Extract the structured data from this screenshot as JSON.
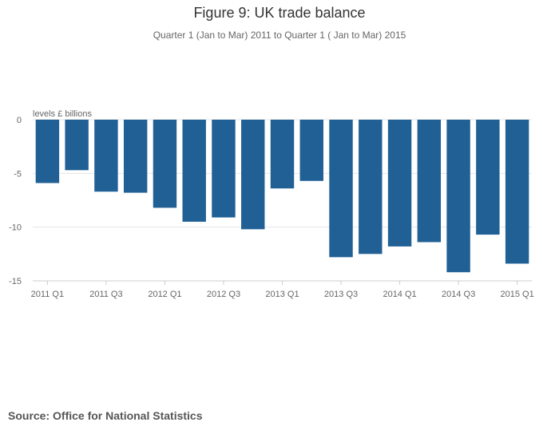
{
  "chart_data": {
    "type": "bar",
    "title": "Figure 9: UK trade balance",
    "subtitle": "Quarter 1 (Jan to Mar) 2011 to Quarter 1 ( Jan to Mar) 2015",
    "ylabel": "levels £ billions",
    "xlabel": "",
    "categories": [
      "2011 Q1",
      "2011 Q2",
      "2011 Q3",
      "2011 Q4",
      "2012 Q1",
      "2012 Q2",
      "2012 Q3",
      "2012 Q4",
      "2013 Q1",
      "2013 Q2",
      "2013 Q3",
      "2013 Q4",
      "2014 Q1",
      "2014 Q2",
      "2014 Q3",
      "2014 Q4",
      "2015 Q1"
    ],
    "x_tick_labels": [
      "2011 Q1",
      "2011 Q3",
      "2012 Q1",
      "2012 Q3",
      "2013 Q1",
      "2013 Q3",
      "2014 Q1",
      "2014 Q3",
      "2015 Q1"
    ],
    "values": [
      -5.9,
      -4.7,
      -6.7,
      -6.8,
      -8.2,
      -9.5,
      -9.1,
      -10.2,
      -6.4,
      -5.7,
      -12.8,
      -12.5,
      -11.8,
      -11.4,
      -14.2,
      -10.7,
      -13.4
    ],
    "ylim": [
      -15,
      0
    ],
    "yticks": [
      0,
      -5,
      -10,
      -15
    ],
    "grid": true,
    "legend": "none",
    "colors": {
      "bar": "#206095",
      "grid": "#e6e6e6",
      "axis": "#cccccc"
    }
  },
  "footer": {
    "source": "Source: Office for National Statistics"
  }
}
